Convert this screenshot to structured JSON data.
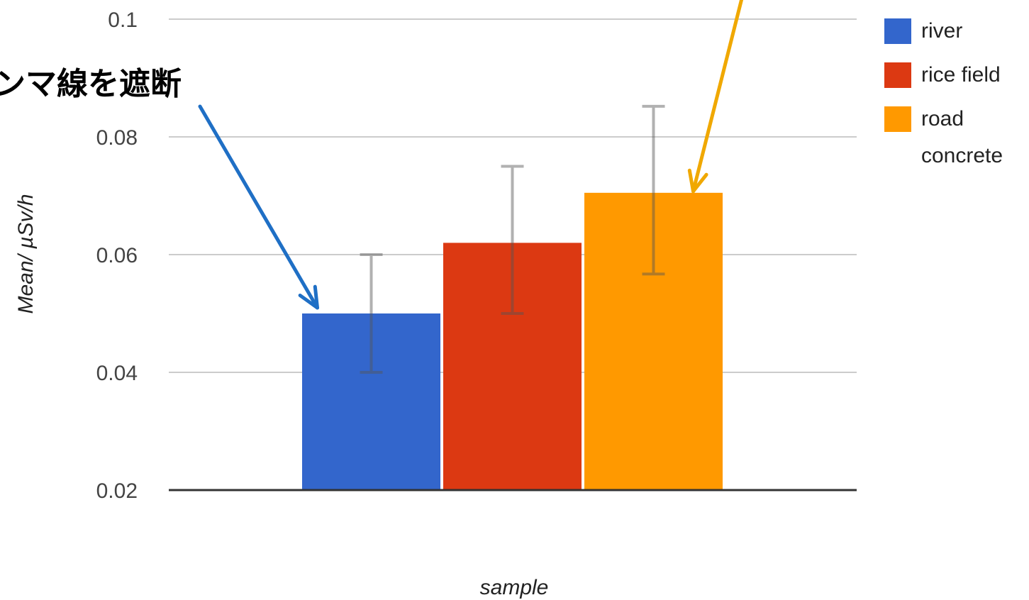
{
  "chart_data": {
    "type": "bar",
    "categories": [
      ""
    ],
    "series": [
      {
        "name": "river",
        "values": [
          0.05
        ],
        "error_low": [
          0.04
        ],
        "error_high": [
          0.06
        ]
      },
      {
        "name": "rice field",
        "values": [
          0.062
        ],
        "error_low": [
          0.05
        ],
        "error_high": [
          0.075
        ]
      },
      {
        "name": "road concrete",
        "values": [
          0.0705
        ],
        "error_low": [
          0.0567
        ],
        "error_high": [
          0.0852
        ]
      }
    ],
    "legend_lines": [
      [
        "river"
      ],
      [
        "rice field"
      ],
      [
        "road",
        "concrete"
      ]
    ],
    "title": "",
    "xlabel": "sample",
    "ylabel": "Mean/ µSv/h",
    "ylim": [
      0.02,
      0.1
    ],
    "yticks": [
      "0.02",
      "0.04",
      "0.06",
      "0.08",
      "0.1"
    ],
    "grid": true,
    "legend_position": "right",
    "colors": [
      "#3366cc",
      "#dc3912",
      "#ff9900"
    ],
    "annotations": [
      {
        "text": "ンマ線を遮断",
        "target_series": "river",
        "arrow_color": "#1f6fc5"
      },
      {
        "text": "",
        "target_series": "road concrete",
        "arrow_color": "#f0a800"
      }
    ]
  }
}
